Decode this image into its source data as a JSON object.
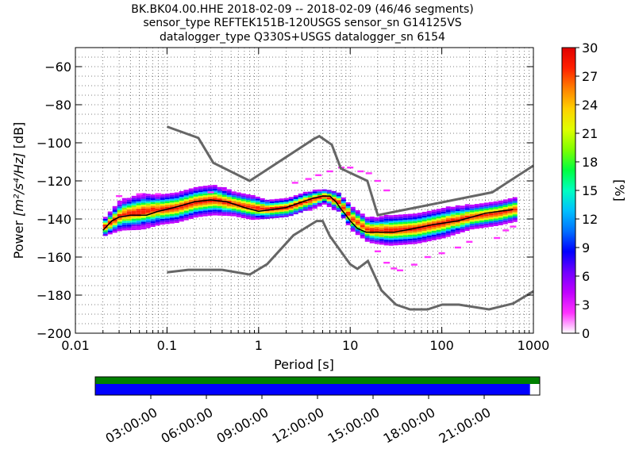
{
  "chart_data": {
    "type": "heatmap",
    "title_lines": [
      "BK.BK04.00.HHE   2018-02-09 -- 2018-02-09  (46/46 segments)",
      "sensor_type REFTEK151B-120USGS sensor_sn G14125VS",
      "datalogger_type Q330S+USGS datalogger_sn 6154"
    ],
    "xlabel": "Period [s]",
    "ylabel_prefix": "Power",
    "ylabel_units": "[m²/s⁴/Hz]",
    "ylabel_suffix": "[dB]",
    "xscale": "log",
    "xlim": [
      0.01,
      1000
    ],
    "ylim": [
      -200,
      -50
    ],
    "xticks": [
      {
        "value": 0.01,
        "label": "0.01"
      },
      {
        "value": 0.1,
        "label": "0.1"
      },
      {
        "value": 1,
        "label": "1"
      },
      {
        "value": 10,
        "label": "10"
      },
      {
        "value": 100,
        "label": "100"
      },
      {
        "value": 1000,
        "label": "1000"
      }
    ],
    "yticks": [
      {
        "value": -60,
        "label": "−60"
      },
      {
        "value": -80,
        "label": "−80"
      },
      {
        "value": -100,
        "label": "−100"
      },
      {
        "value": -120,
        "label": "−120"
      },
      {
        "value": -140,
        "label": "−140"
      },
      {
        "value": -160,
        "label": "−160"
      },
      {
        "value": -180,
        "label": "−180"
      },
      {
        "value": -200,
        "label": "−200"
      }
    ],
    "grid": true,
    "noise_model_high": [
      [
        0.1,
        -91.5
      ],
      [
        0.22,
        -97.4
      ],
      [
        0.32,
        -110.5
      ],
      [
        0.8,
        -120
      ],
      [
        4,
        -98
      ],
      [
        4.6,
        -96.5
      ],
      [
        6.3,
        -101
      ],
      [
        7.9,
        -113.5
      ],
      [
        15.4,
        -120
      ],
      [
        20,
        -138
      ],
      [
        354.8,
        -126
      ],
      [
        1000,
        -112
      ]
    ],
    "noise_model_low": [
      [
        0.1,
        -168
      ],
      [
        0.17,
        -166.7
      ],
      [
        0.4,
        -166.7
      ],
      [
        0.8,
        -169.2
      ],
      [
        1.24,
        -163.7
      ],
      [
        2.4,
        -148.6
      ],
      [
        4.3,
        -141.1
      ],
      [
        5,
        -141.1
      ],
      [
        6,
        -149
      ],
      [
        10,
        -163.8
      ],
      [
        12,
        -166.2
      ],
      [
        15.6,
        -162.1
      ],
      [
        21.9,
        -177.5
      ],
      [
        31.6,
        -185
      ],
      [
        45,
        -187.5
      ],
      [
        70,
        -187.5
      ],
      [
        101,
        -185
      ],
      [
        154,
        -185
      ],
      [
        328,
        -187.5
      ],
      [
        600,
        -184.4
      ],
      [
        1000,
        -178
      ]
    ],
    "mean_curve": [
      [
        0.02,
        -146
      ],
      [
        0.025,
        -141
      ],
      [
        0.03,
        -139
      ],
      [
        0.04,
        -138
      ],
      [
        0.06,
        -138
      ],
      [
        0.08,
        -136
      ],
      [
        0.12,
        -134
      ],
      [
        0.2,
        -131
      ],
      [
        0.3,
        -130
      ],
      [
        0.45,
        -131
      ],
      [
        0.7,
        -134
      ],
      [
        1,
        -136
      ],
      [
        1.4,
        -135
      ],
      [
        2,
        -134
      ],
      [
        3,
        -131
      ],
      [
        4,
        -129
      ],
      [
        5,
        -128
      ],
      [
        6,
        -128
      ],
      [
        7,
        -131
      ],
      [
        8,
        -135
      ],
      [
        9,
        -138
      ],
      [
        10,
        -141
      ],
      [
        12,
        -145
      ],
      [
        15,
        -147
      ],
      [
        20,
        -147
      ],
      [
        30,
        -147
      ],
      [
        50,
        -145
      ],
      [
        80,
        -143
      ],
      [
        150,
        -141
      ],
      [
        300,
        -137
      ],
      [
        600,
        -135
      ]
    ],
    "ppsd_bands": [
      {
        "period": 0.02,
        "center": -144,
        "spread": 4
      },
      {
        "period": 0.03,
        "center": -138,
        "spread": 6
      },
      {
        "period": 0.05,
        "center": -136,
        "spread": 7
      },
      {
        "period": 0.08,
        "center": -135,
        "spread": 6
      },
      {
        "period": 0.12,
        "center": -134,
        "spread": 6
      },
      {
        "period": 0.2,
        "center": -131,
        "spread": 6
      },
      {
        "period": 0.3,
        "center": -130,
        "spread": 6
      },
      {
        "period": 0.5,
        "center": -132,
        "spread": 5
      },
      {
        "period": 0.8,
        "center": -134,
        "spread": 5
      },
      {
        "period": 1.2,
        "center": -135,
        "spread": 4
      },
      {
        "period": 2,
        "center": -134,
        "spread": 4
      },
      {
        "period": 3,
        "center": -131,
        "spread": 4
      },
      {
        "period": 5,
        "center": -128,
        "spread": 3
      },
      {
        "period": 7,
        "center": -131,
        "spread": 4
      },
      {
        "period": 10,
        "center": -140,
        "spread": 5
      },
      {
        "period": 15,
        "center": -146,
        "spread": 5
      },
      {
        "period": 25,
        "center": -146,
        "spread": 6
      },
      {
        "period": 50,
        "center": -145,
        "spread": 6
      },
      {
        "period": 100,
        "center": -142,
        "spread": 6
      },
      {
        "period": 200,
        "center": -139,
        "spread": 5
      },
      {
        "period": 400,
        "center": -137,
        "spread": 5
      },
      {
        "period": 600,
        "center": -135,
        "spread": 5
      }
    ],
    "scatter_outliers": [
      [
        0.03,
        -128
      ],
      [
        0.05,
        -127
      ],
      [
        0.08,
        -127
      ],
      [
        0.3,
        -126
      ],
      [
        2.5,
        -121
      ],
      [
        3.5,
        -119
      ],
      [
        4.5,
        -117
      ],
      [
        6,
        -115
      ],
      [
        8,
        -113
      ],
      [
        10,
        -113
      ],
      [
        13,
        -115
      ],
      [
        16,
        -116
      ],
      [
        20,
        -120
      ],
      [
        25,
        -125
      ],
      [
        20,
        -157
      ],
      [
        25,
        -163
      ],
      [
        30,
        -166
      ],
      [
        35,
        -167
      ],
      [
        50,
        -164
      ],
      [
        70,
        -160
      ],
      [
        100,
        -158
      ],
      [
        150,
        -155
      ],
      [
        200,
        -152
      ],
      [
        400,
        -150
      ],
      [
        500,
        -146
      ],
      [
        600,
        -144
      ]
    ],
    "colorbar": {
      "label": "[%]",
      "range": [
        0,
        30
      ],
      "ticks": [
        {
          "value": 0,
          "label": "0"
        },
        {
          "value": 3,
          "label": "3"
        },
        {
          "value": 6,
          "label": "6"
        },
        {
          "value": 9,
          "label": "9"
        },
        {
          "value": 12,
          "label": "12"
        },
        {
          "value": 15,
          "label": "15"
        },
        {
          "value": 18,
          "label": "18"
        },
        {
          "value": 21,
          "label": "21"
        },
        {
          "value": 24,
          "label": "24"
        },
        {
          "value": 27,
          "label": "27"
        },
        {
          "value": 30,
          "label": "30"
        }
      ],
      "colors": [
        "#ffffff",
        "#ff33ff",
        "#c000ff",
        "#7000ff",
        "#0000ff",
        "#0070ff",
        "#00c0ff",
        "#00ffc0",
        "#00ff40",
        "#80ff00",
        "#e0ff00",
        "#ffd000",
        "#ff8000",
        "#ff2000",
        "#e00000"
      ]
    },
    "coverage": {
      "time_labels": [
        "03:00:00",
        "06:00:00",
        "09:00:00",
        "12:00:00",
        "15:00:00",
        "18:00:00",
        "21:00:00"
      ],
      "time_hours": [
        3,
        6,
        9,
        12,
        15,
        18,
        21
      ],
      "range_hours": [
        0,
        24
      ],
      "data_fraction": 0.978,
      "top_color": "#008000",
      "bottom_color": "#0000ff"
    },
    "curve_colors": {
      "noise_model": "#666666",
      "mean": "#000000"
    }
  }
}
